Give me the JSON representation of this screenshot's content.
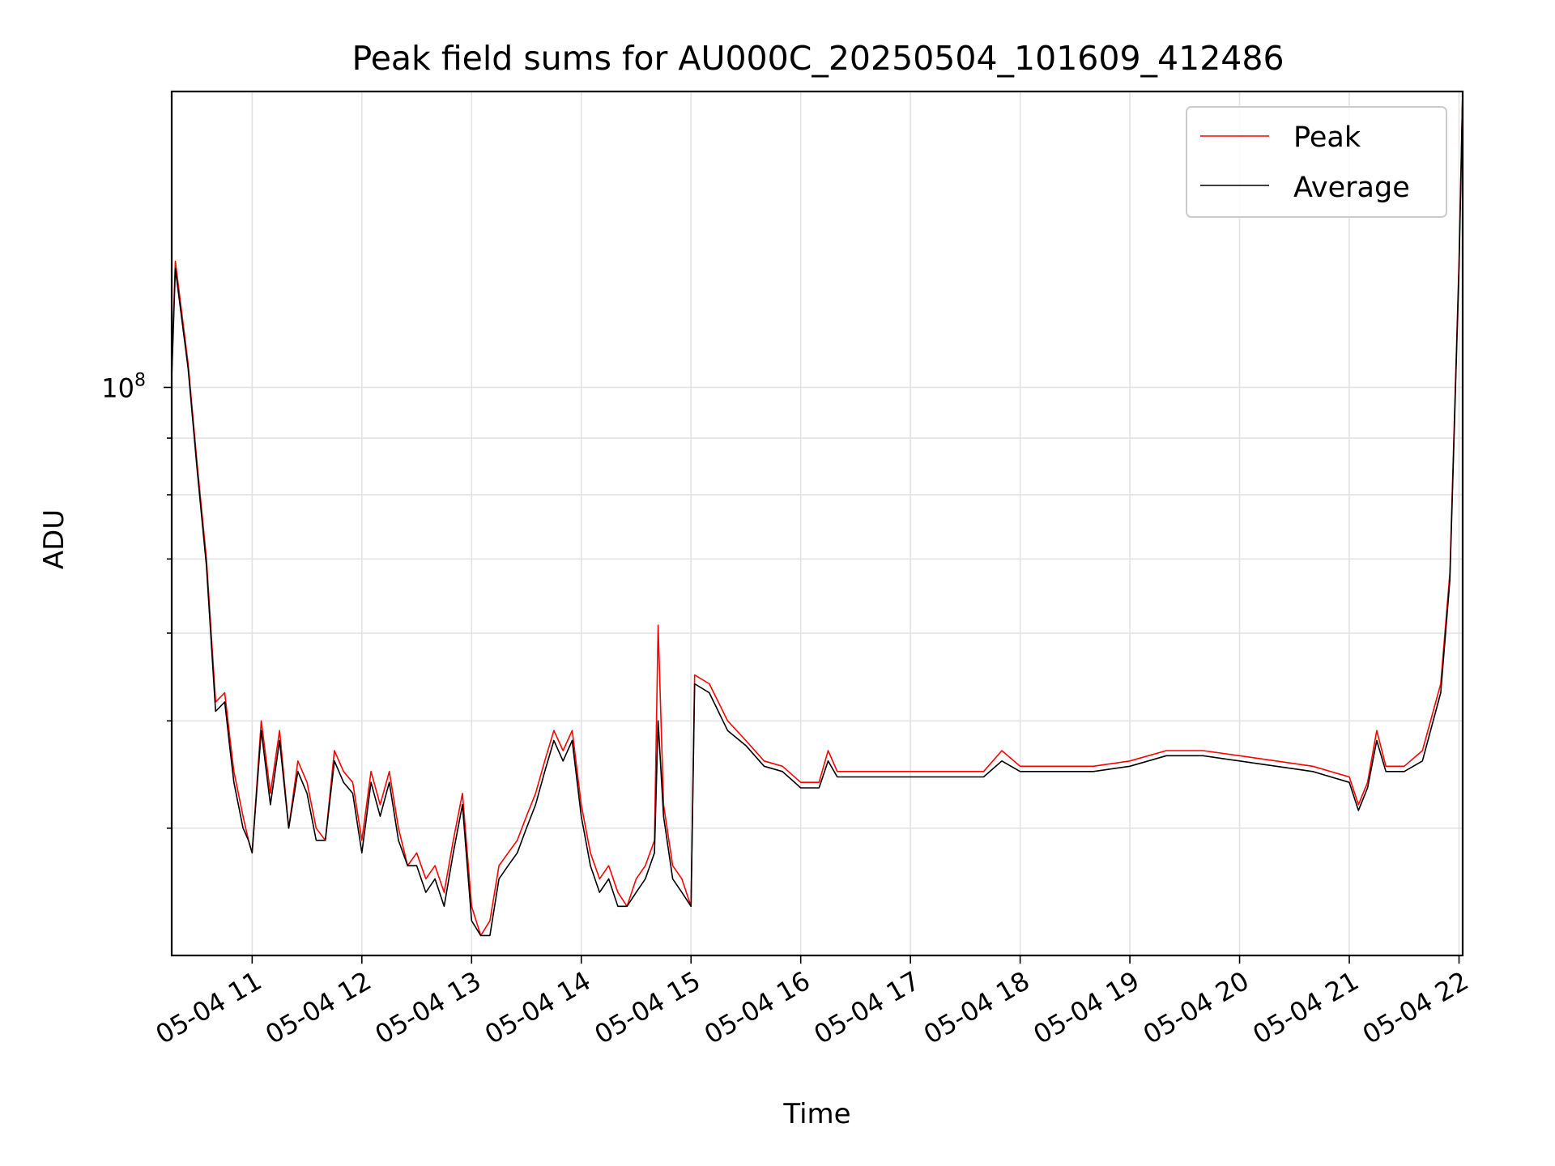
{
  "chart_data": {
    "type": "line",
    "title": "Peak field sums for AU000C_20250504_101609_412486",
    "xlabel": "Time",
    "ylabel": "ADU",
    "yscale": "log",
    "grid": true,
    "legend_position": "top-right",
    "xlim": [
      "2025-05-04T10:16",
      "2025-05-04T22:02"
    ],
    "ylim": [
      30700000.0,
      185000000.0
    ],
    "x_ticks": [
      "05-04 11",
      "05-04 12",
      "05-04 13",
      "05-04 14",
      "05-04 15",
      "05-04 16",
      "05-04 17",
      "05-04 18",
      "05-04 19",
      "05-04 20",
      "05-04 21",
      "05-04 22"
    ],
    "y_ticks": [
      {
        "value": 100000000.0,
        "base": "10",
        "exponent": "8"
      }
    ],
    "x_unit_times": [
      "10:16",
      "10:18",
      "10:25",
      "10:30",
      "10:35",
      "10:40",
      "10:45",
      "10:48",
      "10:50",
      "10:55",
      "10:58",
      "11:00",
      "11:05",
      "11:10",
      "11:15",
      "11:20",
      "11:25",
      "11:30",
      "11:35",
      "11:40",
      "11:45",
      "11:50",
      "11:55",
      "12:00",
      "12:05",
      "12:10",
      "12:15",
      "12:20",
      "12:25",
      "12:30",
      "12:35",
      "12:40",
      "12:45",
      "12:50",
      "12:55",
      "13:00",
      "13:05",
      "13:10",
      "13:15",
      "13:20",
      "13:25",
      "13:30",
      "13:35",
      "13:40",
      "13:45",
      "13:50",
      "13:55",
      "14:00",
      "14:05",
      "14:10",
      "14:15",
      "14:20",
      "14:25",
      "14:30",
      "14:35",
      "14:40",
      "14:42",
      "14:45",
      "14:50",
      "14:55",
      "15:00",
      "15:02",
      "15:10",
      "15:20",
      "15:30",
      "15:40",
      "15:50",
      "16:00",
      "16:10",
      "16:15",
      "16:20",
      "16:30",
      "16:40",
      "16:50",
      "17:00",
      "17:20",
      "17:40",
      "17:50",
      "18:00",
      "18:20",
      "18:40",
      "19:00",
      "19:20",
      "19:40",
      "20:00",
      "20:20",
      "20:40",
      "21:00",
      "21:05",
      "21:10",
      "21:15",
      "21:20",
      "21:30",
      "21:40",
      "21:50",
      "21:55",
      "22:00",
      "22:02"
    ],
    "series": [
      {
        "name": "Peak",
        "color": "#ff0000",
        "values": [
          103000000.0,
          130000000.0,
          105000000.0,
          85000000.0,
          70000000.0,
          52000000.0,
          53000000.0,
          48000000.0,
          45000000.0,
          41000000.0,
          39000000.0,
          38000000.0,
          50000000.0,
          43000000.0,
          49000000.0,
          40000000.0,
          46000000.0,
          44000000.0,
          40000000.0,
          39000000.0,
          47000000.0,
          45000000.0,
          44000000.0,
          39000000.0,
          45000000.0,
          42000000.0,
          45000000.0,
          40000000.0,
          37000000.0,
          38000000.0,
          36000000.0,
          37000000.0,
          35000000.0,
          39000000.0,
          43000000.0,
          34000000.0,
          32000000.0,
          33000000.0,
          37000000.0,
          38000000.0,
          39000000.0,
          41000000.0,
          43000000.0,
          46000000.0,
          49000000.0,
          47000000.0,
          49000000.0,
          42000000.0,
          38000000.0,
          36000000.0,
          37000000.0,
          35000000.0,
          34000000.0,
          36000000.0,
          37000000.0,
          39000000.0,
          61000000.0,
          42000000.0,
          37000000.0,
          36000000.0,
          34000000.0,
          55000000.0,
          54000000.0,
          50000000.0,
          48000000.0,
          46000000.0,
          45500000.0,
          44000000.0,
          44000000.0,
          47000000.0,
          45000000.0,
          45000000.0,
          45000000.0,
          45000000.0,
          45000000.0,
          45000000.0,
          45000000.0,
          47000000.0,
          45500000.0,
          45500000.0,
          45500000.0,
          46000000.0,
          47000000.0,
          47000000.0,
          46500000.0,
          46000000.0,
          45500000.0,
          44500000.0,
          42000000.0,
          44000000.0,
          49000000.0,
          45500000.0,
          45500000.0,
          47000000.0,
          54000000.0,
          68000000.0,
          130000000.0,
          185000000.0
        ]
      },
      {
        "name": "Average",
        "color": "#000000",
        "values": [
          102000000.0,
          128000000.0,
          104000000.0,
          84000000.0,
          69000000.0,
          51000000.0,
          52000000.0,
          47000000.0,
          44000000.0,
          40000000.0,
          39000000.0,
          38000000.0,
          49000000.0,
          42000000.0,
          48000000.0,
          40000000.0,
          45000000.0,
          43000000.0,
          39000000.0,
          39000000.0,
          46000000.0,
          44000000.0,
          43000000.0,
          38000000.0,
          44000000.0,
          41000000.0,
          44000000.0,
          39000000.0,
          37000000.0,
          37000000.0,
          35000000.0,
          36000000.0,
          34000000.0,
          38000000.0,
          42000000.0,
          33000000.0,
          32000000.0,
          32000000.0,
          36000000.0,
          37000000.0,
          38000000.0,
          40000000.0,
          42000000.0,
          45000000.0,
          48000000.0,
          46000000.0,
          48000000.0,
          41000000.0,
          37000000.0,
          35000000.0,
          36000000.0,
          34000000.0,
          34000000.0,
          35000000.0,
          36000000.0,
          38000000.0,
          50000000.0,
          41000000.0,
          36000000.0,
          35000000.0,
          34000000.0,
          54000000.0,
          53000000.0,
          49000000.0,
          47500000.0,
          45500000.0,
          45000000.0,
          43500000.0,
          43500000.0,
          46000000.0,
          44500000.0,
          44500000.0,
          44500000.0,
          44500000.0,
          44500000.0,
          44500000.0,
          44500000.0,
          46000000.0,
          45000000.0,
          45000000.0,
          45000000.0,
          45500000.0,
          46500000.0,
          46500000.0,
          46000000.0,
          45500000.0,
          45000000.0,
          44000000.0,
          41500000.0,
          43500000.0,
          48000000.0,
          45000000.0,
          45000000.0,
          46000000.0,
          53000000.0,
          67000000.0,
          128000000.0,
          185000000.0
        ]
      }
    ]
  }
}
